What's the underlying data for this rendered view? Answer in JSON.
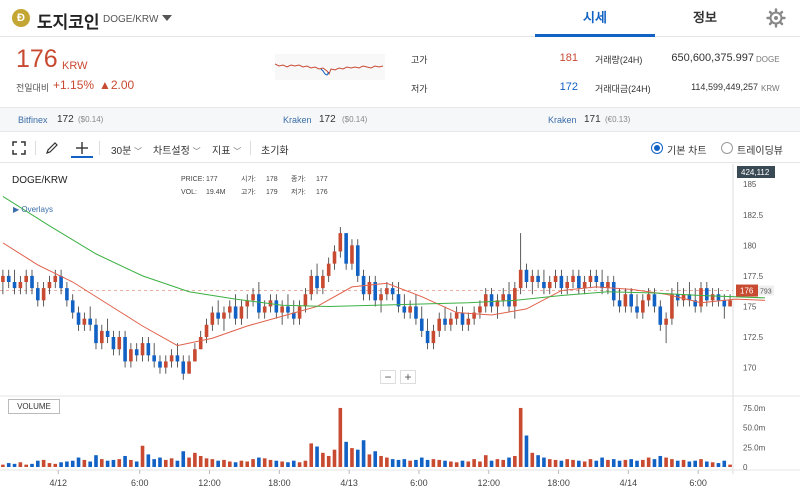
{
  "header": {
    "coin_symbol_glyph": "Ð",
    "coin_name": "도지코인",
    "coin_pair": "DOGE/KRW",
    "tabs": [
      {
        "label": "시세"
      },
      {
        "label": "정보"
      }
    ]
  },
  "ticker": {
    "price": "176",
    "unit": "KRW",
    "prev_label": "전일대비",
    "change_pct": "+1.15%",
    "change_abs": "▲2.00",
    "high_label": "고가",
    "high_value": "181",
    "low_label": "저가",
    "low_value": "172",
    "volume_label": "거래량(24H)",
    "volume_value": "650,600,375.997",
    "volume_unit": "DOGE",
    "amount_label": "거래대금(24H)",
    "amount_value": "114,599,449,257",
    "amount_unit": "KRW"
  },
  "exchanges": [
    {
      "name": "Bitfinex",
      "price": "172",
      "sub": "($0.14)"
    },
    {
      "name": "Kraken",
      "price": "172",
      "sub": "($0.14)"
    },
    {
      "name": "Kraken",
      "price": "171",
      "sub": "(€0.13)"
    }
  ],
  "toolbar": {
    "interval": "30분",
    "chart_settings": "차트설정",
    "indicators": "지표",
    "reset": "초기화",
    "basic_chart": "기본 차트",
    "tradingview": "트레이딩뷰"
  },
  "chart_data": {
    "type": "candlestick",
    "symbol": "DOGE/KRW",
    "legend": {
      "price_label": "PRICE:",
      "price": "177",
      "open_label": "시가:",
      "open": "178",
      "close_label": "종가:",
      "close": "177",
      "vol_label": "VOL:",
      "vol": "19.4M",
      "high_label": "고가:",
      "high": "179",
      "low_label": "저가:",
      "low": "176"
    },
    "overlays_label": "Overlays",
    "volume_label": "VOLUME",
    "y_ticks": [
      "185",
      "182.5",
      "180",
      "177.5",
      "175",
      "172.5",
      "170"
    ],
    "y_top_badge": "424,112",
    "current_price_badge": "176",
    "current_price_badge_suffix": "793",
    "volume_ticks": [
      "75.0m",
      "50.0m",
      "25.0m",
      "0"
    ],
    "x_ticks": [
      "4/12",
      "6:00",
      "12:00",
      "18:00",
      "4/13",
      "6:00",
      "12:00",
      "18:00",
      "4/14",
      "6:00"
    ],
    "ylim": [
      168,
      186
    ],
    "volume_max": 80,
    "candles": [
      [
        177,
        178,
        176,
        177.5,
        3
      ],
      [
        177.5,
        178,
        176.5,
        177,
        5
      ],
      [
        177,
        178,
        176,
        176.5,
        4
      ],
      [
        176.5,
        177.5,
        176,
        177,
        6
      ],
      [
        177,
        178,
        176,
        177.5,
        3
      ],
      [
        177.5,
        178,
        176,
        176.5,
        4
      ],
      [
        176.5,
        177,
        175,
        175.5,
        8
      ],
      [
        175.5,
        177,
        175,
        176.5,
        9
      ],
      [
        176.5,
        177.5,
        176,
        177,
        5
      ],
      [
        177,
        178,
        176.5,
        177.5,
        4
      ],
      [
        177.5,
        178,
        176,
        176.5,
        6
      ],
      [
        176.5,
        177,
        175,
        175.5,
        7
      ],
      [
        175.5,
        176,
        174,
        174.5,
        8
      ],
      [
        174.5,
        175,
        173,
        173.5,
        12
      ],
      [
        173.5,
        174.5,
        173,
        174,
        9
      ],
      [
        174,
        175,
        173,
        173.5,
        7
      ],
      [
        173.5,
        174,
        171.5,
        172,
        15
      ],
      [
        172,
        173.5,
        171.5,
        173,
        10
      ],
      [
        173,
        174,
        172,
        172.5,
        8
      ],
      [
        172.5,
        173,
        171,
        171.5,
        9
      ],
      [
        171.5,
        173,
        171,
        172.5,
        10
      ],
      [
        172.5,
        173,
        170,
        170.5,
        14
      ],
      [
        170.5,
        172,
        170,
        171.5,
        9
      ],
      [
        171.5,
        172,
        170.5,
        171,
        7
      ],
      [
        171,
        172.5,
        170.5,
        172,
        27
      ],
      [
        172,
        172.5,
        170.5,
        171,
        16
      ],
      [
        171,
        172,
        170,
        170.5,
        10
      ],
      [
        170.5,
        171,
        169.5,
        170,
        12
      ],
      [
        170,
        171,
        169.5,
        170.5,
        9
      ],
      [
        170.5,
        171.5,
        170,
        171,
        11
      ],
      [
        171,
        172,
        170,
        170.5,
        8
      ],
      [
        170.5,
        171,
        169,
        169.5,
        20
      ],
      [
        169.5,
        171,
        169.5,
        170.5,
        12
      ],
      [
        170.5,
        172,
        170.5,
        171.5,
        18
      ],
      [
        171.5,
        173,
        171.5,
        172.5,
        14
      ],
      [
        172.5,
        174,
        172,
        173.5,
        11
      ],
      [
        173.5,
        175,
        173,
        174.5,
        10
      ],
      [
        174.5,
        175.5,
        173.5,
        174,
        8
      ],
      [
        174,
        175,
        173,
        174.5,
        9
      ],
      [
        174.5,
        175.5,
        174,
        175,
        7
      ],
      [
        175,
        176,
        173.5,
        174,
        6
      ],
      [
        174,
        175.5,
        173.5,
        175,
        8
      ],
      [
        175,
        176,
        174,
        175.5,
        7
      ],
      [
        175.5,
        176.5,
        175,
        176,
        10
      ],
      [
        176,
        177,
        174,
        174.5,
        12
      ],
      [
        174.5,
        175.5,
        174,
        175,
        11
      ],
      [
        175,
        176,
        174.5,
        175.5,
        9
      ],
      [
        175.5,
        176,
        174,
        174.5,
        8
      ],
      [
        174.5,
        175.5,
        173.5,
        175,
        7
      ],
      [
        175,
        176,
        174,
        174.5,
        6
      ],
      [
        174.5,
        175.5,
        173.5,
        174,
        8
      ],
      [
        174,
        175.5,
        173.5,
        175,
        6
      ],
      [
        175,
        176.5,
        174.5,
        176,
        8
      ],
      [
        176,
        178,
        175.5,
        177.5,
        30
      ],
      [
        177.5,
        178.5,
        176,
        176.5,
        26
      ],
      [
        176.5,
        178,
        176,
        177.5,
        18
      ],
      [
        177.5,
        179,
        177,
        178.5,
        14
      ],
      [
        178.5,
        180,
        178,
        179.5,
        22
      ],
      [
        179.5,
        181.5,
        179,
        181,
        75
      ],
      [
        181,
        181,
        178,
        178.5,
        32
      ],
      [
        178.5,
        180.5,
        178,
        180,
        24
      ],
      [
        180,
        180.5,
        177,
        177.5,
        22
      ],
      [
        177.5,
        178,
        175.5,
        176,
        34
      ],
      [
        176,
        177.5,
        175.5,
        177,
        16
      ],
      [
        177,
        177.5,
        175,
        175.5,
        20
      ],
      [
        175.5,
        176.5,
        174.5,
        176,
        14
      ],
      [
        176,
        177,
        175.5,
        176.5,
        12
      ],
      [
        176.5,
        177,
        175.5,
        176,
        10
      ],
      [
        176,
        177,
        174.5,
        175,
        9
      ],
      [
        175,
        176,
        174,
        174.5,
        10
      ],
      [
        174.5,
        175.5,
        174,
        175,
        8
      ],
      [
        175,
        176,
        173.5,
        174,
        9
      ],
      [
        174,
        175,
        172.5,
        173,
        12
      ],
      [
        173,
        174,
        171.5,
        172,
        9
      ],
      [
        172,
        173.5,
        171.5,
        173,
        10
      ],
      [
        173,
        174.5,
        172.5,
        174,
        9
      ],
      [
        174,
        175,
        173,
        173.5,
        8
      ],
      [
        173.5,
        174.5,
        173,
        174,
        7
      ],
      [
        174,
        175,
        173.5,
        174.5,
        6
      ],
      [
        174.5,
        175,
        173,
        173.5,
        8
      ],
      [
        173.5,
        174.5,
        173,
        174,
        7
      ],
      [
        174,
        175,
        173.5,
        174.5,
        10
      ],
      [
        174.5,
        175.5,
        174,
        175,
        7
      ],
      [
        175,
        176.5,
        174.5,
        176,
        15
      ],
      [
        176,
        176.5,
        174.5,
        175,
        8
      ],
      [
        175,
        176,
        174,
        175.5,
        10
      ],
      [
        175.5,
        176.5,
        175,
        176,
        9
      ],
      [
        176,
        177,
        174.5,
        175,
        12
      ],
      [
        175,
        177,
        174,
        176.5,
        14
      ],
      [
        176.5,
        181,
        176,
        178,
        75
      ],
      [
        178,
        178.5,
        176.5,
        177,
        40
      ],
      [
        177,
        178,
        176,
        177.5,
        18
      ],
      [
        177.5,
        178,
        176.5,
        177,
        15
      ],
      [
        177,
        178,
        176,
        176.5,
        12
      ],
      [
        176.5,
        177.5,
        176,
        177,
        10
      ],
      [
        177,
        178,
        176.5,
        177.5,
        9
      ],
      [
        177.5,
        178,
        176,
        176.5,
        8
      ],
      [
        176.5,
        177.5,
        176,
        177,
        10
      ],
      [
        177,
        178,
        176.5,
        177.5,
        9
      ],
      [
        177.5,
        178,
        176,
        176.5,
        8
      ],
      [
        176.5,
        177.5,
        176,
        177,
        7
      ],
      [
        177,
        178,
        176.5,
        177.5,
        10
      ],
      [
        177.5,
        178,
        176.5,
        177,
        8
      ],
      [
        177,
        178,
        176,
        176.5,
        12
      ],
      [
        176.5,
        177.5,
        176,
        177,
        9
      ],
      [
        177,
        177.5,
        175,
        175.5,
        10
      ],
      [
        175.5,
        176.5,
        174.5,
        175,
        8
      ],
      [
        175,
        176.5,
        174.5,
        176,
        9
      ],
      [
        176,
        176.5,
        174.5,
        175,
        10
      ],
      [
        175,
        176,
        174,
        174.5,
        8
      ],
      [
        174.5,
        176,
        174,
        175.5,
        9
      ],
      [
        175.5,
        176.5,
        175,
        176,
        12
      ],
      [
        176,
        176.5,
        174.5,
        175,
        10
      ],
      [
        175,
        175.5,
        173,
        173.5,
        14
      ],
      [
        173.5,
        174.5,
        172,
        174,
        12
      ],
      [
        174,
        176.5,
        173.5,
        176,
        10
      ],
      [
        176,
        177,
        175,
        175.5,
        8
      ],
      [
        175.5,
        176.5,
        175,
        176,
        9
      ],
      [
        176,
        177,
        175,
        175.5,
        7
      ],
      [
        175.5,
        176.5,
        174.5,
        175,
        8
      ],
      [
        175,
        177,
        174.5,
        176.5,
        10
      ],
      [
        176.5,
        177,
        175,
        175.5,
        7
      ],
      [
        175.5,
        176.5,
        175,
        176,
        6
      ],
      [
        176,
        176.5,
        175,
        175.5,
        5
      ],
      [
        175.5,
        176,
        174,
        175,
        8
      ],
      [
        175,
        176,
        175,
        175.5,
        3
      ]
    ],
    "sma_fast": [
      [
        0,
        180.2
      ],
      [
        6,
        178.4
      ],
      [
        12,
        177.0
      ],
      [
        18,
        175.2
      ],
      [
        24,
        173.4
      ],
      [
        30,
        171.8
      ],
      [
        36,
        172.4
      ],
      [
        42,
        173.4
      ],
      [
        48,
        174.2
      ],
      [
        54,
        175.0
      ],
      [
        60,
        176.6
      ],
      [
        66,
        176.9
      ],
      [
        72,
        175.8
      ],
      [
        78,
        174.5
      ],
      [
        84,
        174.3
      ],
      [
        90,
        174.8
      ],
      [
        96,
        176.3
      ],
      [
        102,
        176.6
      ],
      [
        108,
        176.4
      ],
      [
        114,
        176.0
      ],
      [
        120,
        175.3
      ],
      [
        126,
        175.6
      ],
      [
        131,
        175.5
      ]
    ],
    "sma_slow": [
      [
        0,
        184.0
      ],
      [
        8,
        181.6
      ],
      [
        16,
        179.3
      ],
      [
        24,
        177.5
      ],
      [
        32,
        176.2
      ],
      [
        40,
        175.6
      ],
      [
        48,
        175.1
      ],
      [
        56,
        175.0
      ],
      [
        64,
        175.1
      ],
      [
        72,
        175.2
      ],
      [
        80,
        175.3
      ],
      [
        88,
        175.5
      ],
      [
        96,
        175.9
      ],
      [
        104,
        176.2
      ],
      [
        112,
        176.1
      ],
      [
        120,
        175.9
      ],
      [
        131,
        175.7
      ]
    ]
  }
}
